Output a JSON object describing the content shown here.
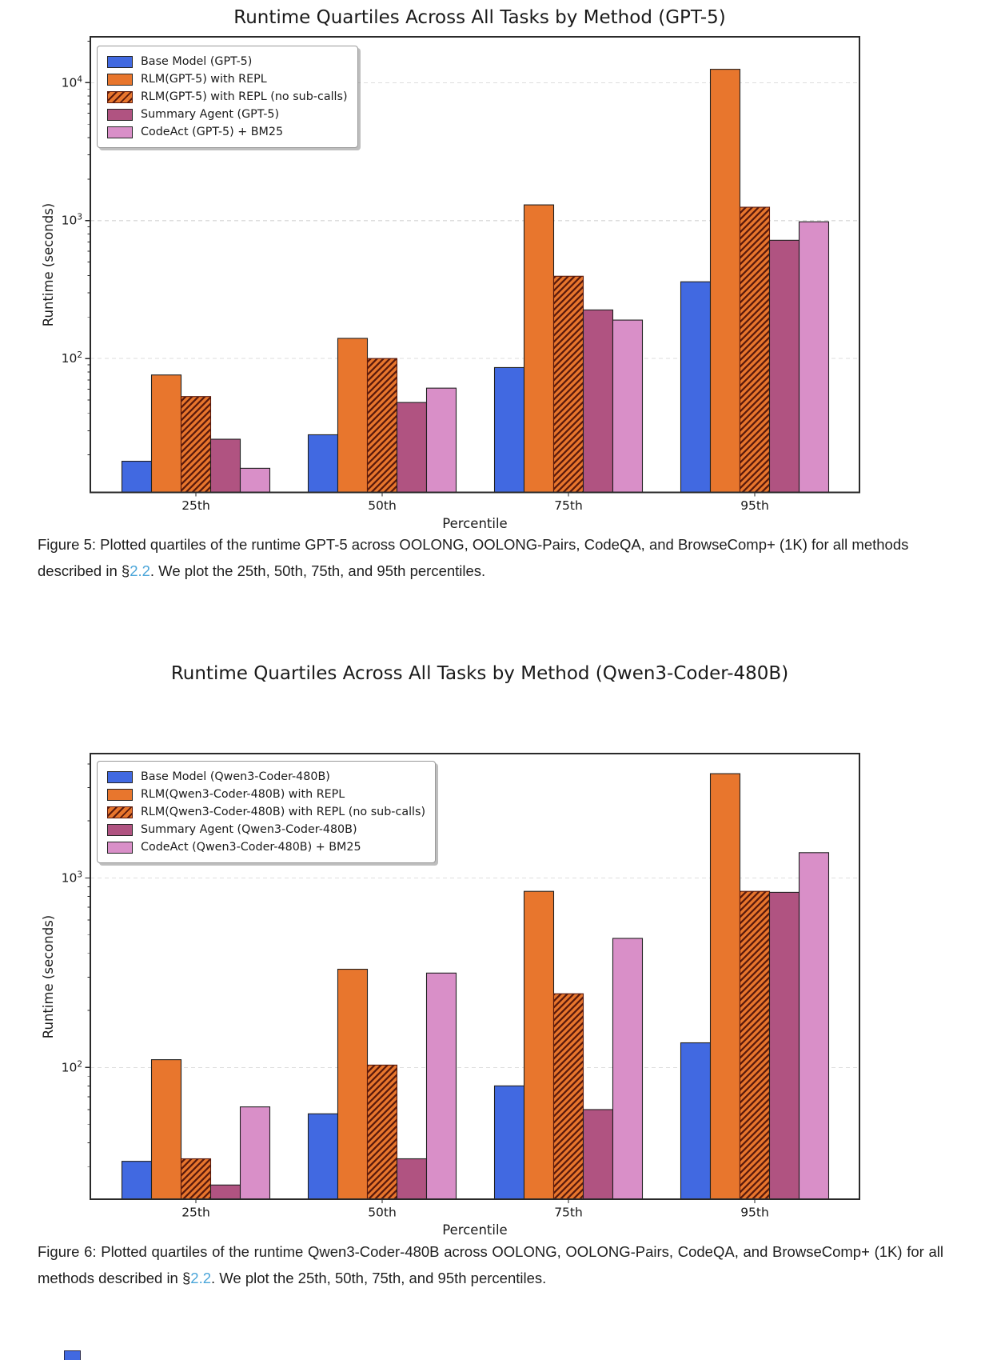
{
  "figure5": {
    "title": "Runtime Quartiles Across All Tasks by Method (GPT-5)",
    "ylabel": "Runtime (seconds)",
    "xlabel": "Percentile",
    "caption": {
      "prefix": "Figure 5: Plotted quartiles of the runtime GPT-5 across OOLONG, OOLONG-Pairs, CodeQA, and BrowseComp+ (1K) for all methods described in §",
      "link_text": "2.2",
      "suffix": ". We plot the 25th, 50th, 75th, and 95th percentiles."
    },
    "chart_data": {
      "type": "bar",
      "y_scale": "log",
      "title": "Runtime Quartiles Across All Tasks by Method (GPT-5)",
      "xlabel": "Percentile",
      "ylabel": "Runtime (seconds)",
      "categories": [
        "25th",
        "50th",
        "75th",
        "95th"
      ],
      "ylim": [
        10.7,
        21500
      ],
      "ytick_values": [
        100,
        1000,
        10000
      ],
      "ytick_labels": [
        "10²",
        "10³",
        "10⁴"
      ],
      "grid": "horizontal dashed at decade ticks",
      "legend_position": "upper left",
      "series": [
        {
          "name": "Base Model (GPT-5)",
          "color": "#4169e1",
          "hatch": false,
          "values": [
            18,
            28,
            86,
            360
          ]
        },
        {
          "name": "RLM(GPT-5) with REPL",
          "color": "#e8762d",
          "hatch": false,
          "values": [
            76,
            140,
            1300,
            12500
          ]
        },
        {
          "name": "RLM(GPT-5) with REPL (no sub-calls)",
          "color": "#e8762d",
          "hatch": true,
          "values": [
            53,
            100,
            395,
            1250
          ]
        },
        {
          "name": "Summary Agent (GPT-5)",
          "color": "#b05381",
          "hatch": false,
          "values": [
            26,
            48,
            225,
            720
          ]
        },
        {
          "name": "CodeAct (GPT-5) + BM25",
          "color": "#d98fc8",
          "hatch": false,
          "values": [
            16,
            61,
            190,
            980
          ]
        }
      ]
    }
  },
  "figure6": {
    "title": "Runtime Quartiles Across All Tasks by Method (Qwen3-Coder-480B)",
    "ylabel": "Runtime (seconds)",
    "xlabel": "Percentile",
    "caption": {
      "prefix": "Figure 6: Plotted quartiles of the runtime Qwen3-Coder-480B across OOLONG, OOLONG-Pairs, CodeQA, and BrowseComp+ (1K) for all methods described in §",
      "link_text": "2.2",
      "suffix": ". We plot the 25th, 50th, 75th, and 95th percentiles."
    },
    "chart_data": {
      "type": "bar",
      "y_scale": "log",
      "title": "Runtime Quartiles Across All Tasks by Method (Qwen3-Coder-480B)",
      "xlabel": "Percentile",
      "ylabel": "Runtime (seconds)",
      "categories": [
        "25th",
        "50th",
        "75th",
        "95th"
      ],
      "ylim": [
        20.2,
        4530
      ],
      "ytick_values": [
        100,
        1000
      ],
      "ytick_labels": [
        "10²",
        "10³"
      ],
      "grid": "horizontal dashed at decade ticks",
      "legend_position": "upper left",
      "series": [
        {
          "name": "Base Model (Qwen3-Coder-480B)",
          "color": "#4169e1",
          "hatch": false,
          "values": [
            32,
            57,
            80,
            135
          ]
        },
        {
          "name": "RLM(Qwen3-Coder-480B) with REPL",
          "color": "#e8762d",
          "hatch": false,
          "values": [
            110,
            330,
            850,
            3550
          ]
        },
        {
          "name": "RLM(Qwen3-Coder-480B) with REPL (no sub-calls)",
          "color": "#e8762d",
          "hatch": true,
          "values": [
            33,
            103,
            245,
            850
          ]
        },
        {
          "name": "Summary Agent (Qwen3-Coder-480B)",
          "color": "#b05381",
          "hatch": false,
          "values": [
            24,
            33,
            60,
            840
          ]
        },
        {
          "name": "CodeAct (Qwen3-Coder-480B) + BM25",
          "color": "#d98fc8",
          "hatch": false,
          "values": [
            62,
            315,
            480,
            1360
          ]
        }
      ]
    }
  },
  "styles": {
    "link_color": "#4aa5d9",
    "bar_edge_color": "#212121",
    "hatch_line_color": "#5b1a0c",
    "grid_color": "#dedede",
    "spine_color": "#2a2a2a",
    "partial_next_figure_swatch_color": "#4169e1"
  }
}
